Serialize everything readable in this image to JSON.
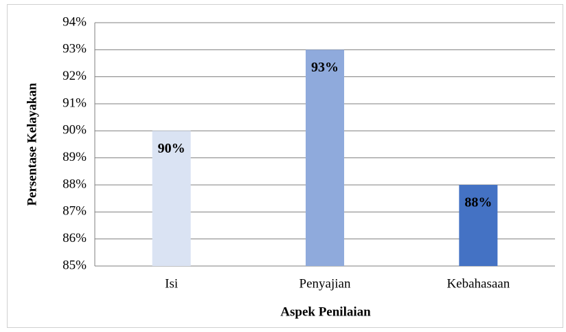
{
  "chart_data": {
    "type": "bar",
    "x_label": "Aspek Penilaian",
    "y_label": "Persentase Kelayakan",
    "categories": [
      "Isi",
      "Penyajian",
      "Kebahasaan"
    ],
    "values": [
      90,
      93,
      88
    ],
    "value_labels": [
      "90%",
      "93%",
      "88%"
    ],
    "colors": [
      "#dae3f3",
      "#8faadc",
      "#4472c4"
    ],
    "ylim": [
      85,
      94
    ],
    "yticks": [
      {
        "value": 85,
        "label": "85%"
      },
      {
        "value": 86,
        "label": "86%"
      },
      {
        "value": 87,
        "label": "87%"
      },
      {
        "value": 88,
        "label": "88%"
      },
      {
        "value": 89,
        "label": "89%"
      },
      {
        "value": 90,
        "label": "90%"
      },
      {
        "value": 91,
        "label": "91%"
      },
      {
        "value": 92,
        "label": "92%"
      },
      {
        "value": 93,
        "label": "93%"
      },
      {
        "value": 94,
        "label": "94%"
      }
    ],
    "grid": true
  }
}
